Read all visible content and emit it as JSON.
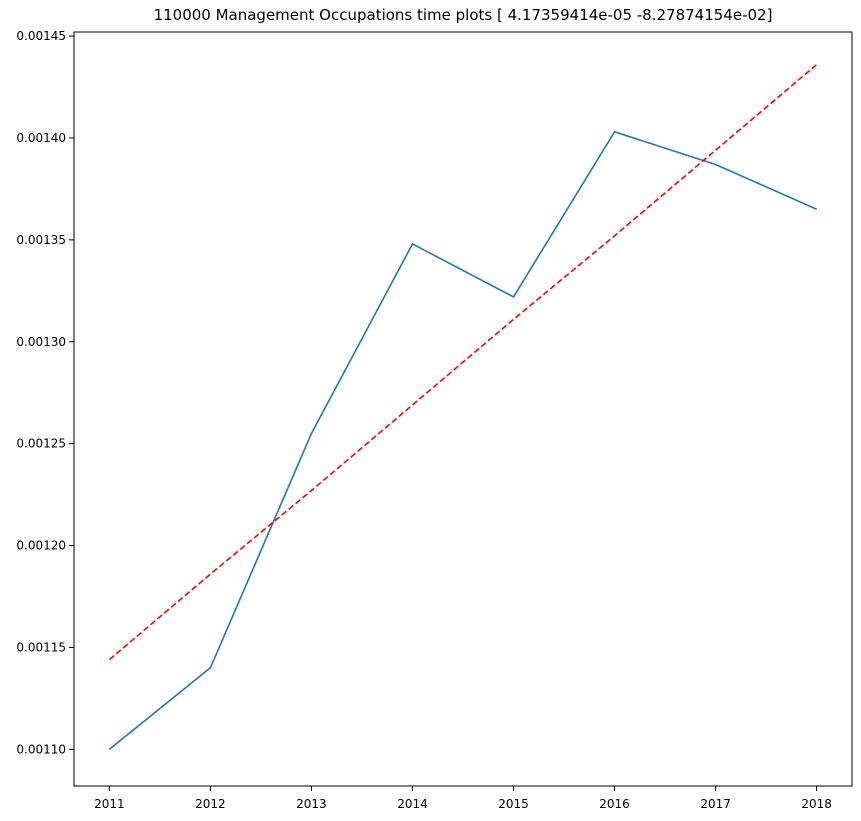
{
  "chart_data": {
    "type": "line",
    "title": "110000 Management Occupations time plots [ 4.17359414e-05 -8.27874154e-02]",
    "xlabel": "",
    "ylabel": "",
    "x": [
      2011,
      2012,
      2013,
      2014,
      2015,
      2016,
      2017,
      2018
    ],
    "x_tick_labels": [
      "2011",
      "2012",
      "2013",
      "2014",
      "2015",
      "2016",
      "2017",
      "2018"
    ],
    "y_ticks": [
      0.0011,
      0.00115,
      0.0012,
      0.00125,
      0.0013,
      0.00135,
      0.0014,
      0.00145
    ],
    "y_tick_labels": [
      "0.00110",
      "0.00115",
      "0.00120",
      "0.00125",
      "0.00130",
      "0.00135",
      "0.00140",
      "0.00145"
    ],
    "xlim": [
      2010.65,
      2018.35
    ],
    "ylim": [
      0.001082,
      0.001452
    ],
    "grid": false,
    "series": [
      {
        "style": "solid",
        "color": "#1f77b4",
        "values": [
          0.0011,
          0.00114,
          0.001255,
          0.001348,
          0.001322,
          0.001403,
          0.001387,
          0.001365
        ]
      },
      {
        "style": "dashed",
        "color": "#ff0000",
        "values": [
          0.001144,
          0.001186,
          0.001227,
          0.001269,
          0.001311,
          0.001352,
          0.001394,
          0.001436
        ]
      }
    ]
  }
}
